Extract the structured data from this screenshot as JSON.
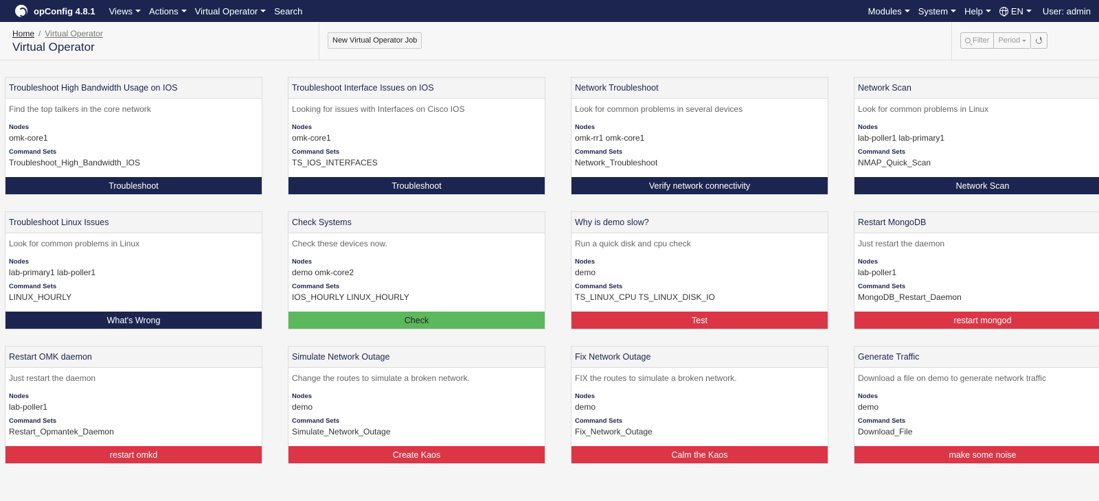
{
  "navbar": {
    "brand": "opConfig 4.8.1",
    "menu": [
      "Views",
      "Actions",
      "Virtual Operator"
    ],
    "search": "Search",
    "right_menu": [
      "Modules",
      "System",
      "Help"
    ],
    "language": "EN",
    "user": "User: admin"
  },
  "breadcrumb": {
    "home": "Home",
    "separator": "/",
    "current": "Virtual Operator"
  },
  "page_title": "Virtual Operator",
  "new_job_label": "New Virtual Operator Job",
  "filter": {
    "filter_placeholder": "Filter",
    "period_label": "Period"
  },
  "labels": {
    "nodes": "Nodes",
    "command_sets": "Command Sets"
  },
  "colors": {
    "navy": "#1b2550",
    "green": "#5cb85c",
    "red": "#dc3545"
  },
  "cards": [
    {
      "title": "Troubleshoot High Bandwidth Usage on IOS",
      "desc": "Find the top talkers in the core network",
      "nodes": "omk-core1",
      "command_sets": "Troubleshoot_High_Bandwidth_IOS",
      "button": "Troubleshoot",
      "color": "navy"
    },
    {
      "title": "Troubleshoot Interface Issues on IOS",
      "desc": "Looking for issues with Interfaces on Cisco IOS",
      "nodes": "omk-core1",
      "command_sets": "TS_IOS_INTERFACES",
      "button": "Troubleshoot",
      "color": "navy"
    },
    {
      "title": "Network Troubleshoot",
      "desc": "Look for common problems in several devices",
      "nodes": "omk-rr1 omk-core1",
      "command_sets": "Network_Troubleshoot",
      "button": "Verify network connectivity",
      "color": "navy"
    },
    {
      "title": "Network Scan",
      "desc": "Look for common problems in Linux",
      "nodes": "lab-poller1 lab-primary1",
      "command_sets": "NMAP_Quick_Scan",
      "button": "Network Scan",
      "color": "navy"
    },
    {
      "title": "Troubleshoot Linux Issues",
      "desc": "Look for common problems in Linux",
      "nodes": "lab-primary1 lab-poller1",
      "command_sets": "LINUX_HOURLY",
      "button": "What's Wrong",
      "color": "navy"
    },
    {
      "title": "Check Systems",
      "desc": "Check these devices now.",
      "nodes": "demo omk-core2",
      "command_sets": "IOS_HOURLY LINUX_HOURLY",
      "button": "Check",
      "color": "green"
    },
    {
      "title": "Why is demo slow?",
      "desc": "Run a quick disk and cpu check",
      "nodes": "demo",
      "command_sets": "TS_LINUX_CPU TS_LINUX_DISK_IO",
      "button": "Test",
      "color": "red"
    },
    {
      "title": "Restart MongoDB",
      "desc": "Just restart the daemon",
      "nodes": "lab-poller1",
      "command_sets": "MongoDB_Restart_Daemon",
      "button": "restart mongod",
      "color": "red"
    },
    {
      "title": "Restart OMK daemon",
      "desc": "Just restart the daemon",
      "nodes": "lab-poller1",
      "command_sets": "Restart_Opmantek_Daemon",
      "button": "restart omkd",
      "color": "red"
    },
    {
      "title": "Simulate Network Outage",
      "desc": "Change the routes to simulate a broken network.",
      "nodes": "demo",
      "command_sets": "Simulate_Network_Outage",
      "button": "Create Kaos",
      "color": "red"
    },
    {
      "title": "Fix Network Outage",
      "desc": "FIX the routes to simulate a broken network.",
      "nodes": "demo",
      "command_sets": "Fix_Network_Outage",
      "button": "Calm the Kaos",
      "color": "red"
    },
    {
      "title": "Generate Traffic",
      "desc": "Download a file on demo to generate network traffic",
      "nodes": "demo",
      "command_sets": "Download_File",
      "button": "make some noise",
      "color": "red"
    }
  ]
}
